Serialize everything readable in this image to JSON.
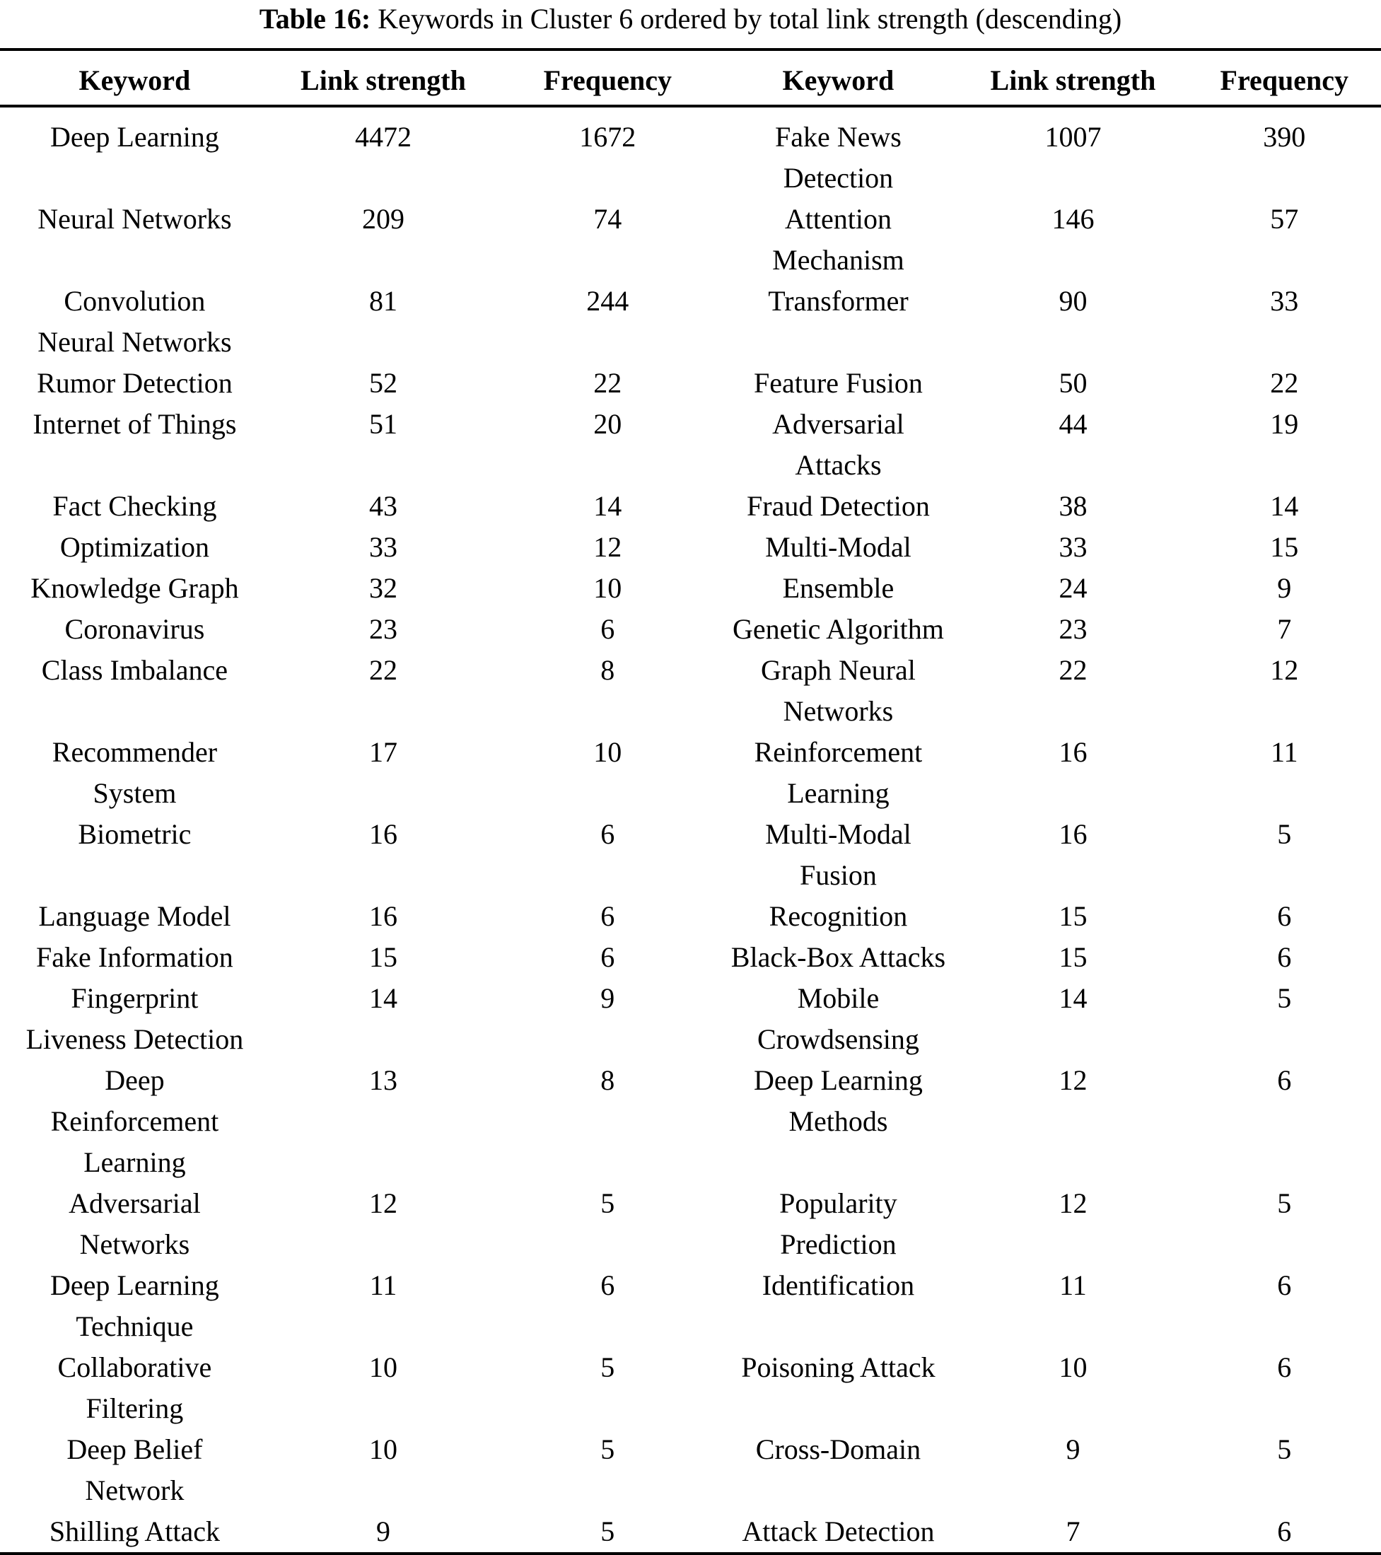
{
  "caption": {
    "label": "Table 16:",
    "text": "Keywords in Cluster 6 ordered by total link strength (descending)"
  },
  "table": {
    "headers": [
      "Keyword",
      "Link strength",
      "Frequency",
      "Keyword",
      "Link strength",
      "Frequency"
    ],
    "rows": [
      [
        "Deep Learning",
        "4472",
        "1672",
        "Fake News\nDetection",
        "1007",
        "390"
      ],
      [
        "Neural Networks",
        "209",
        "74",
        "Attention\nMechanism",
        "146",
        "57"
      ],
      [
        "Convolution\nNeural Networks",
        "81",
        "244",
        "Transformer",
        "90",
        "33"
      ],
      [
        "Rumor Detection",
        "52",
        "22",
        "Feature Fusion",
        "50",
        "22"
      ],
      [
        "Internet of Things",
        "51",
        "20",
        "Adversarial\nAttacks",
        "44",
        "19"
      ],
      [
        "Fact Checking",
        "43",
        "14",
        "Fraud Detection",
        "38",
        "14"
      ],
      [
        "Optimization",
        "33",
        "12",
        "Multi-Modal",
        "33",
        "15"
      ],
      [
        "Knowledge Graph",
        "32",
        "10",
        "Ensemble",
        "24",
        "9"
      ],
      [
        "Coronavirus",
        "23",
        "6",
        "Genetic Algorithm",
        "23",
        "7"
      ],
      [
        "Class Imbalance",
        "22",
        "8",
        "Graph Neural\nNetworks",
        "22",
        "12"
      ],
      [
        "Recommender\nSystem",
        "17",
        "10",
        "Reinforcement\nLearning",
        "16",
        "11"
      ],
      [
        "Biometric",
        "16",
        "6",
        "Multi-Modal\nFusion",
        "16",
        "5"
      ],
      [
        "Language Model",
        "16",
        "6",
        "Recognition",
        "15",
        "6"
      ],
      [
        "Fake Information",
        "15",
        "6",
        "Black-Box Attacks",
        "15",
        "6"
      ],
      [
        "Fingerprint\nLiveness Detection",
        "14",
        "9",
        "Mobile\nCrowdsensing",
        "14",
        "5"
      ],
      [
        "Deep\nReinforcement\nLearning",
        "13",
        "8",
        "Deep Learning\nMethods",
        "12",
        "6"
      ],
      [
        "Adversarial\nNetworks",
        "12",
        "5",
        "Popularity\nPrediction",
        "12",
        "5"
      ],
      [
        "Deep Learning\nTechnique",
        "11",
        "6",
        "Identification",
        "11",
        "6"
      ],
      [
        "Collaborative\nFiltering",
        "10",
        "5",
        "Poisoning Attack",
        "10",
        "6"
      ],
      [
        "Deep Belief\nNetwork",
        "10",
        "5",
        "Cross-Domain",
        "9",
        "5"
      ],
      [
        "Shilling Attack",
        "9",
        "5",
        "Attack Detection",
        "7",
        "6"
      ]
    ]
  }
}
